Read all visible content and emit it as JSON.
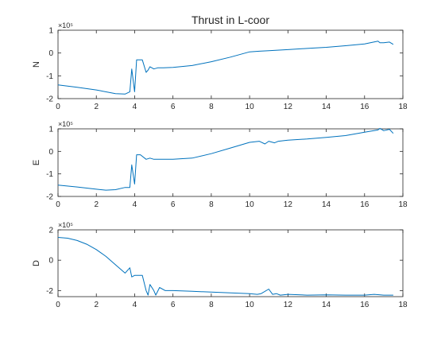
{
  "figure": {
    "title": "Thrust in L-coor"
  },
  "chart_data": [
    {
      "type": "line",
      "ylabel": "N",
      "xlabel": "",
      "exponent_label": "×10⁵",
      "xlim": [
        0,
        18
      ],
      "ylim": [
        -2,
        1
      ],
      "xticks": [
        0,
        2,
        4,
        6,
        8,
        10,
        12,
        14,
        16,
        18
      ],
      "yticks": [
        -2,
        -1,
        0,
        1
      ],
      "series": [
        {
          "color": "#0072BD",
          "x": [
            0,
            1,
            2,
            3,
            3.5,
            3.75,
            3.85,
            4.0,
            4.1,
            4.2,
            4.4,
            4.6,
            4.7,
            4.8,
            5.0,
            5.2,
            5.5,
            6,
            7,
            8,
            9,
            10,
            10.5,
            11,
            12,
            13,
            14,
            15,
            16,
            16.7,
            16.8,
            17,
            17.3,
            17.5
          ],
          "y": [
            -1.4,
            -1.5,
            -1.62,
            -1.78,
            -1.8,
            -1.7,
            -0.7,
            -1.7,
            -0.3,
            -0.3,
            -0.3,
            -0.85,
            -0.75,
            -0.6,
            -0.7,
            -0.65,
            -0.65,
            -0.63,
            -0.55,
            -0.38,
            -0.18,
            0.05,
            0.08,
            0.1,
            0.15,
            0.2,
            0.25,
            0.32,
            0.4,
            0.52,
            0.45,
            0.45,
            0.48,
            0.38
          ]
        }
      ]
    },
    {
      "type": "line",
      "ylabel": "E",
      "xlabel": "",
      "exponent_label": "×10⁵",
      "xlim": [
        0,
        18
      ],
      "ylim": [
        -2,
        1
      ],
      "xticks": [
        0,
        2,
        4,
        6,
        8,
        10,
        12,
        14,
        16,
        18
      ],
      "yticks": [
        -2,
        -1,
        0,
        1
      ],
      "series": [
        {
          "color": "#0072BD",
          "x": [
            0,
            1,
            2,
            2.5,
            3,
            3.5,
            3.75,
            3.85,
            4.0,
            4.1,
            4.3,
            4.6,
            4.8,
            5.0,
            5.5,
            6,
            7,
            8,
            9,
            10,
            10.5,
            10.8,
            11,
            11.3,
            11.5,
            12,
            13,
            14,
            15,
            16,
            16.7,
            16.8,
            17,
            17.3,
            17.5
          ],
          "y": [
            -1.5,
            -1.58,
            -1.68,
            -1.72,
            -1.7,
            -1.6,
            -1.6,
            -0.6,
            -1.45,
            -0.15,
            -0.15,
            -0.35,
            -0.3,
            -0.35,
            -0.35,
            -0.35,
            -0.3,
            -0.1,
            0.15,
            0.4,
            0.45,
            0.33,
            0.45,
            0.38,
            0.45,
            0.5,
            0.55,
            0.62,
            0.7,
            0.85,
            0.95,
            1.02,
            0.92,
            0.98,
            0.8
          ]
        }
      ]
    },
    {
      "type": "line",
      "ylabel": "D",
      "xlabel": "",
      "exponent_label": "×10⁵",
      "xlim": [
        0,
        18
      ],
      "ylim": [
        -2.4,
        2
      ],
      "xticks": [
        0,
        2,
        4,
        6,
        8,
        10,
        12,
        14,
        16,
        18
      ],
      "yticks": [
        -2,
        0,
        2
      ],
      "series": [
        {
          "color": "#0072BD",
          "x": [
            0,
            0.5,
            1,
            1.5,
            2,
            2.5,
            3,
            3.5,
            3.75,
            3.85,
            4.0,
            4.1,
            4.4,
            4.6,
            4.7,
            4.8,
            5.0,
            5.1,
            5.3,
            5.6,
            6,
            7,
            8,
            9,
            10,
            10.4,
            10.6,
            11,
            11.2,
            11.4,
            11.6,
            12,
            13,
            14,
            15,
            16,
            16.5,
            17,
            17.5
          ],
          "y": [
            1.5,
            1.45,
            1.3,
            1.05,
            0.7,
            0.25,
            -0.3,
            -0.85,
            -0.5,
            -1.1,
            -1.0,
            -1.0,
            -1.0,
            -2.0,
            -2.3,
            -1.6,
            -2.0,
            -2.3,
            -1.8,
            -2.0,
            -2.0,
            -2.05,
            -2.1,
            -2.15,
            -2.2,
            -2.25,
            -2.2,
            -1.9,
            -2.25,
            -2.2,
            -2.3,
            -2.25,
            -2.3,
            -2.28,
            -2.3,
            -2.3,
            -2.25,
            -2.3,
            -2.3
          ]
        }
      ]
    }
  ]
}
